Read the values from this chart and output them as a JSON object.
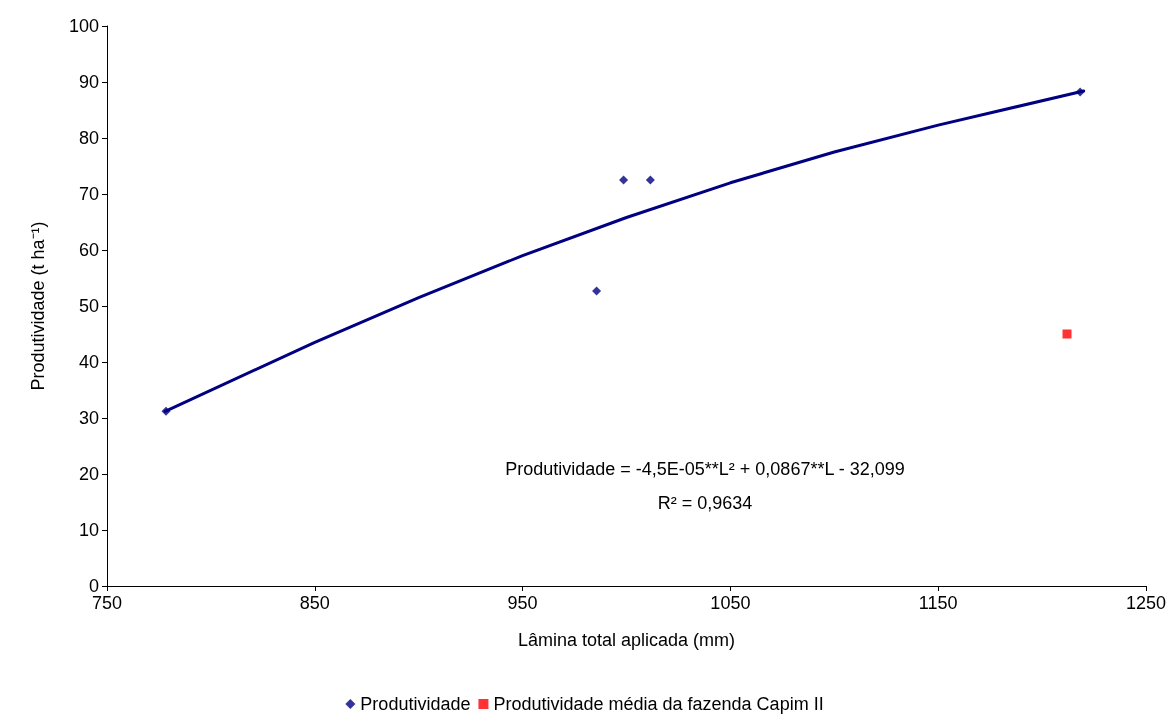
{
  "chart_data": {
    "type": "scatter",
    "xlabel": "Lâmina total aplicada (mm)",
    "ylabel": "Produtividade (t ha⁻¹)",
    "xlim": [
      750,
      1250
    ],
    "xticks": [
      750,
      850,
      950,
      1050,
      1150,
      1250
    ],
    "ylim": [
      0,
      100
    ],
    "yticks": [
      0,
      10,
      20,
      30,
      40,
      50,
      60,
      70,
      80,
      90,
      100
    ],
    "grid": false,
    "legend": "bottom",
    "series": [
      {
        "type": "line",
        "color": "#000080",
        "marker": "none",
        "line_style": "solid",
        "x": [
          778,
          850,
          900,
          950,
          1000,
          1050,
          1100,
          1150,
          1220
        ],
        "values": [
          31.2,
          43.5,
          51.5,
          59,
          65.8,
          72,
          77.5,
          82.3,
          88.4
        ]
      },
      {
        "name": "Produtividade",
        "type": "scatter",
        "color": "#000080",
        "marker": "diamond",
        "x": [
          778.4,
          985.6,
          998.6,
          1011.5,
          1218.3
        ],
        "values": [
          31.2,
          52.7,
          72.5,
          72.5,
          88.2
        ]
      },
      {
        "name": "Produtividade média da fazenda Capim II",
        "type": "scatter",
        "color": "#ff0000",
        "marker": "square",
        "x": [
          1212
        ],
        "values": [
          45
        ]
      }
    ],
    "annotations": [
      "Produtividade = -4,5E-05**L² + 0,0867**L - 32,099",
      "R² = 0,9634"
    ]
  }
}
